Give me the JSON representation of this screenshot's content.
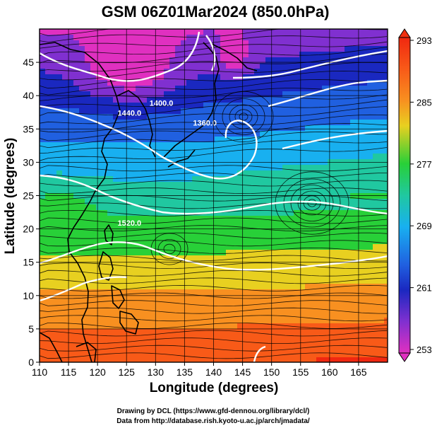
{
  "title": "GSM 06Z01Mar2024 (850.0hPa)",
  "map": {
    "xlabel": "Longitude (degrees)",
    "ylabel": "Latitude  (degrees)",
    "lon_range": [
      110,
      170
    ],
    "lat_range": [
      0,
      50
    ],
    "lon_ticks": [
      "110",
      "115",
      "120",
      "125",
      "130",
      "135",
      "140",
      "145",
      "150",
      "155",
      "160",
      "165"
    ],
    "lat_ticks": [
      "0",
      "5",
      "10",
      "15",
      "20",
      "25",
      "30",
      "35",
      "40",
      "45"
    ],
    "grid": true,
    "field": "temperature (shaded) with geopotential height contours and wind streamlines",
    "contour_labels": [
      {
        "text": "1440.0",
        "lon": 125.5,
        "lat": 37
      },
      {
        "text": "1400.0",
        "lon": 131,
        "lat": 38.5
      },
      {
        "text": "1360.0",
        "lon": 138.5,
        "lat": 35.5
      },
      {
        "text": "1520.0",
        "lon": 125.5,
        "lat": 20.5
      }
    ]
  },
  "colorbar": {
    "ticks": [
      "293",
      "285",
      "277",
      "269",
      "261",
      "253"
    ],
    "values": [
      293,
      285,
      277,
      269,
      261,
      253
    ],
    "range": [
      253,
      293
    ]
  },
  "colors": {
    "magenta": "#e030c0",
    "blue": "#1a30c8",
    "cyan": "#1ab0f0",
    "green": "#20d040",
    "yellow": "#e8e020",
    "orange": "#f89020",
    "red": "#f03010"
  },
  "credits": {
    "line1": "Drawing by DCL (https://www.gfd-dennou.org/library/dcl/)",
    "line2": "Data from http://database.rish.kyoto-u.ac.jp/arch/jmadata/"
  }
}
